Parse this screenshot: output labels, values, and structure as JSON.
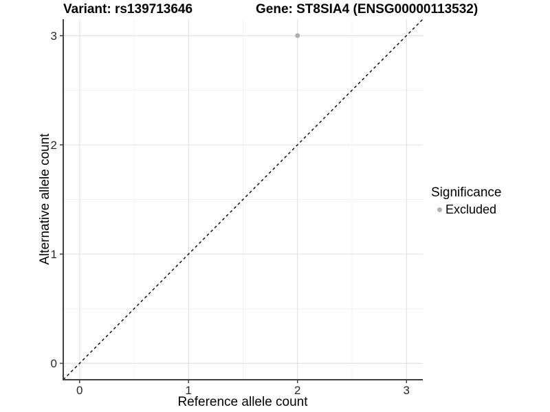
{
  "chart_data": {
    "type": "scatter",
    "title_variant": "Variant: rs139713646",
    "title_gene": "Gene: ST8SIA4 (ENSG00000113532)",
    "xlabel": "Reference allele count",
    "ylabel": "Alternative allele count",
    "xlim": [
      -0.15,
      3.15
    ],
    "ylim": [
      -0.15,
      3.15
    ],
    "x_ticks": [
      0,
      1,
      2,
      3
    ],
    "y_ticks": [
      0,
      1,
      2,
      3
    ],
    "x_tick_labels": [
      "0",
      "1",
      "2",
      "3"
    ],
    "y_tick_labels": [
      "0",
      "1",
      "2",
      "3"
    ],
    "minor_ticks": [
      0.5,
      1.5,
      2.5
    ],
    "grid": "major-and-minor",
    "identity_line": {
      "style": "dashed",
      "from": [
        -0.15,
        -0.15
      ],
      "to": [
        3.15,
        3.15
      ],
      "color": "#000000"
    },
    "series": [
      {
        "name": "Excluded",
        "color": "#b0b0b0",
        "points": [
          {
            "x": 2,
            "y": 3
          }
        ]
      }
    ],
    "legend": {
      "title": "Significance",
      "position": "right",
      "items": [
        {
          "label": "Excluded",
          "color": "#b0b0b0",
          "marker": "circle"
        }
      ]
    },
    "colors": {
      "background": "#ffffff",
      "grid_major": "#e2e2e2",
      "grid_minor": "#f0f0f0",
      "axis_line": "#404040",
      "tick_mark": "#404040",
      "tick_label": "#262626",
      "point": "#b0b0b0",
      "dashed_line": "#000000"
    }
  }
}
